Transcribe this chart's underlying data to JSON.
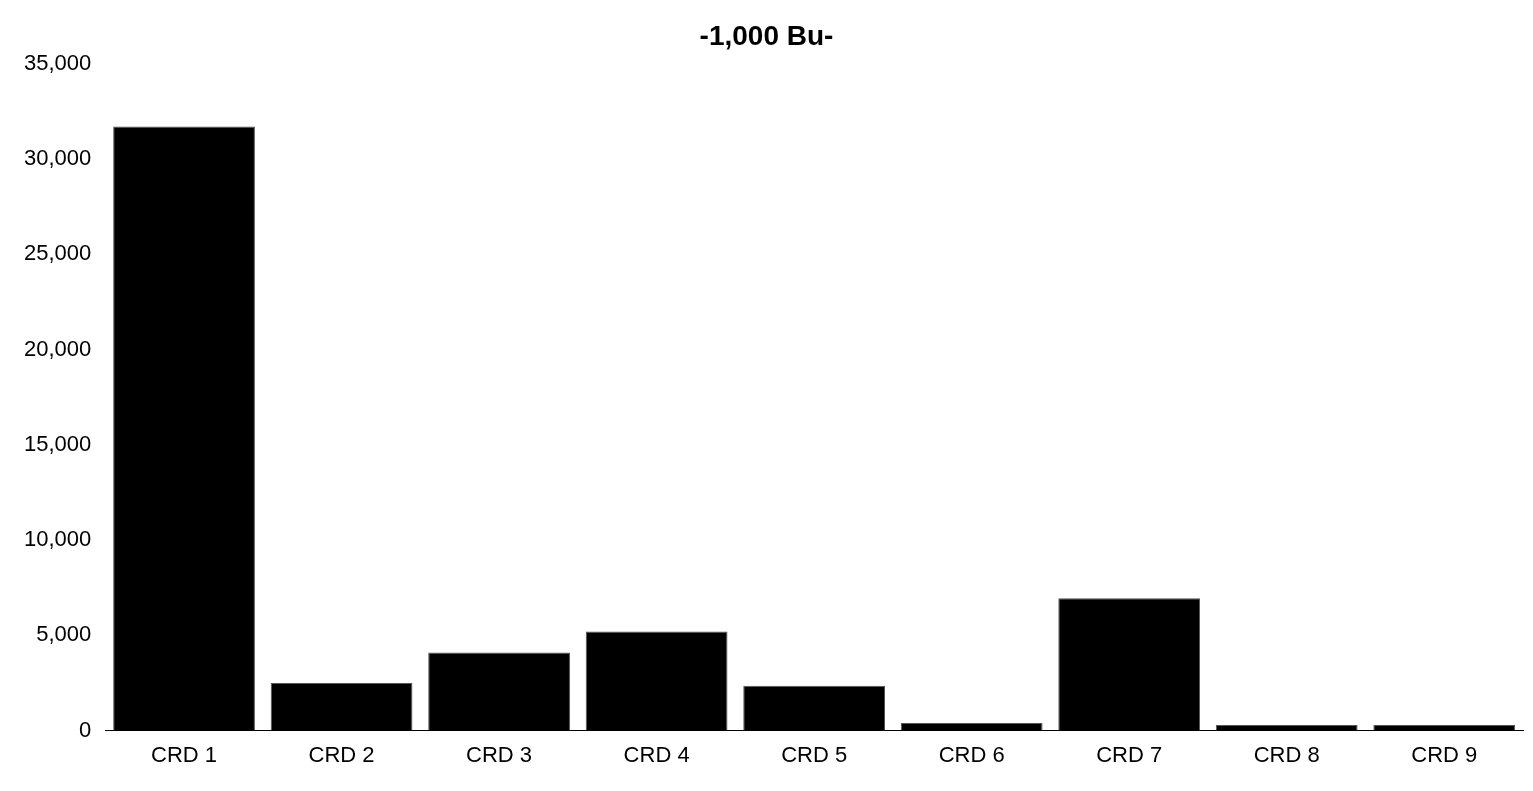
{
  "chart_data": {
    "type": "bar",
    "title": "-1,000 Bu-",
    "categories": [
      "CRD 1",
      "CRD 2",
      "CRD 3",
      "CRD 4",
      "CRD 5",
      "CRD 6",
      "CRD 7",
      "CRD 8",
      "CRD 9"
    ],
    "values": [
      31700,
      2500,
      4100,
      5200,
      2350,
      400,
      6950,
      300,
      300
    ],
    "color": "#000000",
    "ylim": [
      0,
      35000
    ],
    "yticks": [
      0,
      {
        "value": 5000,
        "label": "5,000"
      },
      {
        "value": 10000,
        "label": "10,000"
      },
      {
        "value": 15000,
        "label": "15,000"
      },
      {
        "value": 20000,
        "label": "20,000"
      },
      {
        "value": 25000,
        "label": "25,000"
      },
      {
        "value": 30000,
        "label": "30,000"
      },
      {
        "value": 35000,
        "label": "35,000"
      }
    ],
    "grid": false
  }
}
